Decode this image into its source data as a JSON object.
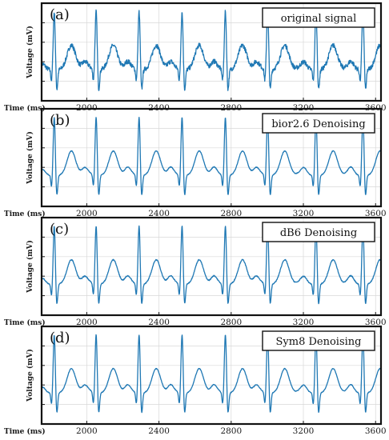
{
  "colors": {
    "signal": "#1f78b4",
    "frame": "#111111",
    "grid": "#d8d8d8"
  },
  "chart_data": [
    {
      "type": "line",
      "panel_label": "(a)",
      "legend": "original signal",
      "xlabel": "Time (ms)",
      "ylabel": "Voltage (mV)",
      "x_ticks": [
        2000,
        2400,
        2800,
        3200,
        3600
      ],
      "xlim": [
        1750,
        3630
      ],
      "grid": true,
      "noise": 0.04,
      "series": [
        {
          "beats_ms": [
            1820,
            2052,
            2290,
            2528,
            2768,
            3002,
            3270,
            3530
          ]
        }
      ]
    },
    {
      "type": "line",
      "panel_label": "(b)",
      "legend": "bior2.6 Denoising",
      "xlabel": "Time (ms)",
      "ylabel": "Voltage (mV)",
      "x_ticks": [
        2000,
        2400,
        2800,
        3200,
        3600
      ],
      "xlim": [
        1750,
        3630
      ],
      "grid": true,
      "noise": 0.006,
      "series": [
        {
          "beats_ms": [
            1820,
            2052,
            2290,
            2528,
            2768,
            3002,
            3270,
            3530
          ]
        }
      ]
    },
    {
      "type": "line",
      "panel_label": "(c)",
      "legend": "dB6 Denoising",
      "xlabel": "Time (ms)",
      "ylabel": "Voltage (mV)",
      "x_ticks": [
        2000,
        2400,
        2800,
        3200,
        3600
      ],
      "xlim": [
        1750,
        3630
      ],
      "grid": true,
      "noise": 0.008,
      "series": [
        {
          "beats_ms": [
            1820,
            2052,
            2290,
            2528,
            2768,
            3002,
            3270,
            3530
          ]
        }
      ]
    },
    {
      "type": "line",
      "panel_label": "(d)",
      "legend": "Sym8 Denoising",
      "xlabel": "Time (ms)",
      "ylabel": "Voltage (mV)",
      "x_ticks": [
        2000,
        2400,
        2800,
        3200,
        3600
      ],
      "xlim": [
        1750,
        3630
      ],
      "grid": true,
      "noise": 0.006,
      "series": [
        {
          "beats_ms": [
            1820,
            2052,
            2290,
            2528,
            2768,
            3002,
            3270,
            3530
          ]
        }
      ]
    }
  ]
}
